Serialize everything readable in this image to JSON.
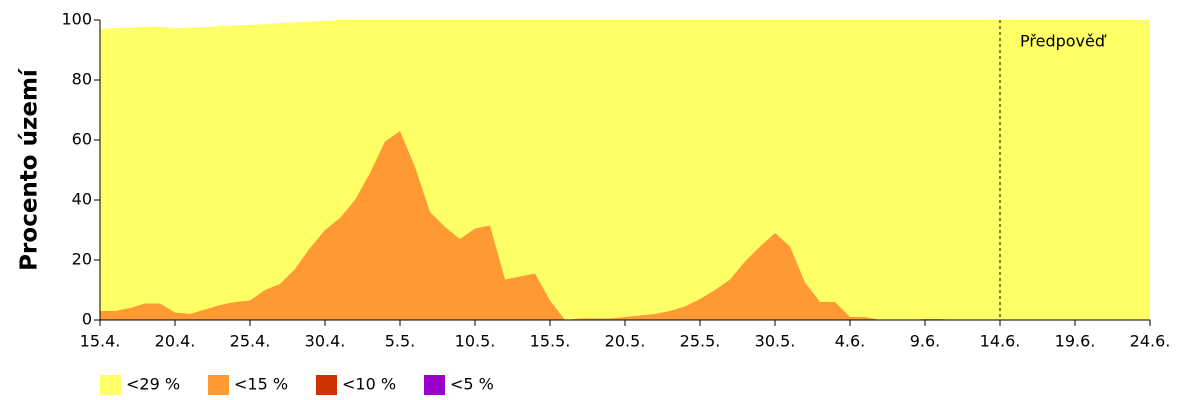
{
  "chart_data": {
    "type": "area",
    "ylabel": "Procento území",
    "categories": [
      "15.4.",
      null,
      null,
      null,
      null,
      "20.4.",
      null,
      null,
      null,
      null,
      "25.4.",
      null,
      null,
      null,
      null,
      "30.4.",
      null,
      null,
      null,
      null,
      "5.5.",
      null,
      null,
      null,
      null,
      "10.5.",
      null,
      null,
      null,
      null,
      "15.5.",
      null,
      null,
      null,
      null,
      "20.5.",
      null,
      null,
      null,
      null,
      "25.5.",
      null,
      null,
      null,
      null,
      "30.5.",
      null,
      null,
      null,
      null,
      "4.6.",
      null,
      null,
      null,
      null,
      "9.6.",
      null,
      null,
      null,
      null,
      "14.6.",
      null,
      null,
      null,
      null,
      "19.6.",
      null,
      null,
      null,
      null,
      "24.6."
    ],
    "series": [
      {
        "name": "<29 %",
        "color": "#ffff66",
        "values": [
          97,
          97.3,
          97.5,
          97.7,
          97.8,
          97.3,
          97.5,
          97.6,
          98,
          98.2,
          98.4,
          98.6,
          99,
          99.3,
          99.5,
          99.7,
          100,
          100,
          100,
          100,
          100,
          100,
          100,
          100,
          100,
          100,
          100,
          100,
          100,
          100,
          100,
          100,
          100,
          100,
          100,
          100,
          100,
          100,
          100,
          100,
          100,
          100,
          100,
          100,
          100,
          100,
          100,
          100,
          100,
          100,
          100,
          100,
          100,
          100,
          100,
          100,
          100,
          100,
          100,
          100,
          100,
          100,
          100,
          100,
          100,
          100,
          100,
          100,
          100,
          100,
          100
        ]
      },
      {
        "name": "<15 %",
        "color": "#ff9933",
        "values": [
          3,
          3,
          4,
          5.5,
          5.5,
          2.5,
          2,
          3.5,
          5,
          6,
          6.5,
          10,
          12,
          17,
          24,
          30,
          34,
          40,
          49,
          59.5,
          63,
          51,
          36,
          31,
          27,
          30.5,
          31.5,
          13.5,
          14.5,
          15.5,
          6.5,
          0,
          0.5,
          0.5,
          0.5,
          1,
          1.5,
          2,
          3,
          4.5,
          7,
          10,
          13.5,
          19.5,
          24.5,
          29,
          24.5,
          12.5,
          6,
          6,
          1,
          1,
          0,
          0,
          0,
          0.3,
          0.3,
          0,
          0,
          0,
          0,
          0,
          0,
          0,
          0,
          0,
          0,
          0,
          0,
          0,
          0
        ]
      },
      {
        "name": "<10 %",
        "color": "#cc3300",
        "values": [
          0,
          0,
          0,
          0,
          0,
          0,
          0,
          0,
          0,
          0,
          0,
          0,
          0,
          0,
          0,
          0,
          0,
          0,
          0,
          0,
          0,
          0,
          0,
          0,
          0,
          0,
          0,
          0,
          0,
          0,
          0,
          0,
          0,
          0,
          0,
          0,
          0,
          0,
          0,
          0,
          0,
          0,
          0,
          0,
          0,
          0,
          0,
          0,
          0,
          0,
          0,
          0,
          0,
          0,
          0,
          0,
          0,
          0,
          0,
          0,
          0,
          0,
          0,
          0,
          0,
          0,
          0,
          0,
          0,
          0,
          0
        ]
      },
      {
        "name": "<5 %",
        "color": "#9900cc",
        "values": [
          0,
          0,
          0,
          0,
          0,
          0,
          0,
          0,
          0,
          0,
          0,
          0,
          0,
          0,
          0,
          0,
          0,
          0,
          0,
          0,
          0,
          0,
          0,
          0,
          0,
          0,
          0,
          0,
          0,
          0,
          0,
          0,
          0,
          0,
          0,
          0,
          0,
          0,
          0,
          0,
          0,
          0,
          0,
          0,
          0,
          0,
          0,
          0,
          0,
          0,
          0,
          0,
          0,
          0,
          0,
          0,
          0,
          0,
          0,
          0,
          0,
          0,
          0,
          0,
          0,
          0,
          0,
          0,
          0,
          0,
          0
        ]
      }
    ],
    "ylim": [
      0,
      100
    ],
    "yticks": [
      0,
      20,
      40,
      60,
      80,
      100
    ],
    "annotations": [
      {
        "text": "Předpověď",
        "x": "14.6."
      }
    ],
    "legend": "bottom-left"
  }
}
